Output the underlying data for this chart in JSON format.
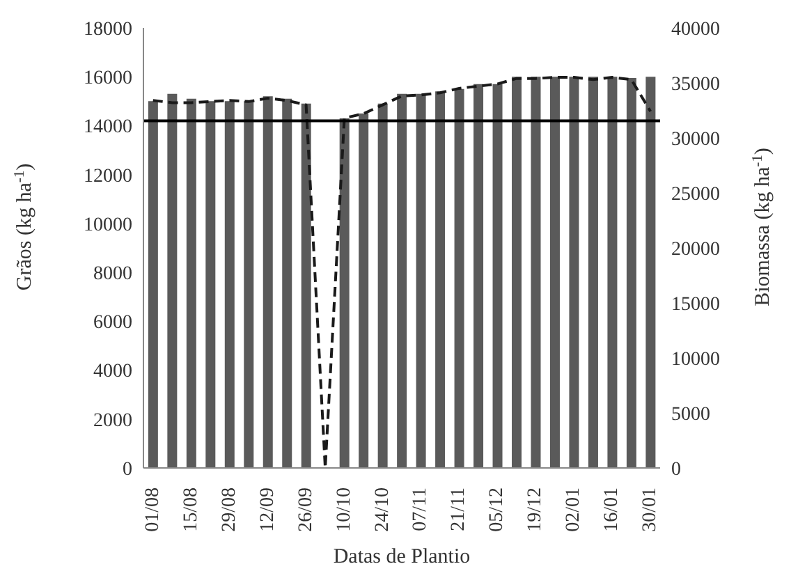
{
  "chart_data": {
    "type": "bar",
    "xlabel": "Datas de Plantio",
    "ylabel": "Grãos (kg ha$^{-1}$)",
    "y2label": "Biomassa (kg ha$^{-1}$)",
    "categories": [
      "01/08",
      null,
      "15/08",
      null,
      "29/08",
      null,
      "12/09",
      null,
      "26/09",
      null,
      "10/10",
      null,
      "24/10",
      null,
      "07/11",
      null,
      "21/11",
      null,
      "05/12",
      null,
      "19/12",
      null,
      "02/01",
      null,
      "16/01",
      null,
      "30/01"
    ],
    "series": [
      {
        "color": "#5a5a5a",
        "values": [
          15000,
          15300,
          15100,
          15000,
          15000,
          15000,
          15200,
          15100,
          14900,
          0,
          14300,
          14500,
          14900,
          15300,
          15300,
          15400,
          15500,
          15700,
          15700,
          16000,
          16000,
          16000,
          16000,
          16000,
          16000,
          15950,
          16000
        ]
      },
      {
        "type": "line",
        "axis": "y2",
        "color": "#1a1a1a",
        "line_style": "dashed",
        "marker": "none",
        "values": [
          33400,
          33200,
          33200,
          33300,
          33400,
          33300,
          33600,
          33400,
          33000,
          0,
          31800,
          32200,
          33000,
          33800,
          33900,
          34100,
          34500,
          34700,
          34900,
          35400,
          35400,
          35500,
          35500,
          35300,
          35500,
          35300,
          32400
        ]
      }
    ],
    "ylim": [
      0,
      18000
    ],
    "yticks": [
      0,
      2000,
      4000,
      6000,
      8000,
      10000,
      12000,
      14000,
      16000,
      18000
    ],
    "y2lim": [
      0,
      40000
    ],
    "y2ticks": [
      0,
      5000,
      10000,
      15000,
      20000,
      25000,
      30000,
      35000,
      40000
    ],
    "ref_lines": [
      {
        "axis": "y",
        "value": 14200,
        "color": "#000000",
        "line_style": "solid"
      }
    ],
    "grid": false,
    "legend": false
  }
}
